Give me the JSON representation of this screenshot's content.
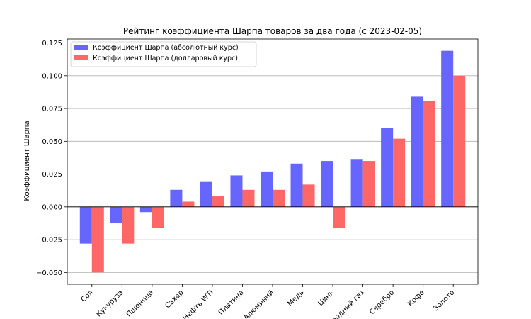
{
  "chart_data": {
    "type": "bar",
    "title": "Рейтинг коэффициента Шарпа товаров за два года (с 2023-02-05)",
    "xlabel": "",
    "ylabel": "Коэффициент Шарпа",
    "ylim": [
      -0.059,
      0.128
    ],
    "yticks": [
      -0.05,
      -0.025,
      0.0,
      0.025,
      0.05,
      0.075,
      0.1,
      0.125
    ],
    "ytick_labels": [
      "−0.050",
      "−0.025",
      "0.000",
      "0.025",
      "0.050",
      "0.075",
      "0.100",
      "0.125"
    ],
    "grid": true,
    "legend_position": "top-left",
    "categories": [
      "Соя",
      "Кукуруза",
      "Пшеница",
      "Сахар",
      "Нефть WTI",
      "Платина",
      "Алюминий",
      "Медь",
      "Цинк",
      "Природный газ",
      "Серебро",
      "Кофе",
      "Золото"
    ],
    "series": [
      {
        "name": "Коэффициент Шарпа (абсолютный курс)",
        "color": "#6666ff",
        "values": [
          -0.028,
          -0.012,
          -0.004,
          0.013,
          0.019,
          0.024,
          0.027,
          0.033,
          0.035,
          0.036,
          0.06,
          0.084,
          0.119
        ]
      },
      {
        "name": "Коэффициент Шарпа (долларовый курс)",
        "color": "#ff6666",
        "values": [
          -0.05,
          -0.028,
          -0.016,
          0.004,
          0.008,
          0.013,
          0.013,
          0.017,
          -0.016,
          0.035,
          0.052,
          0.081,
          0.1
        ]
      }
    ]
  }
}
